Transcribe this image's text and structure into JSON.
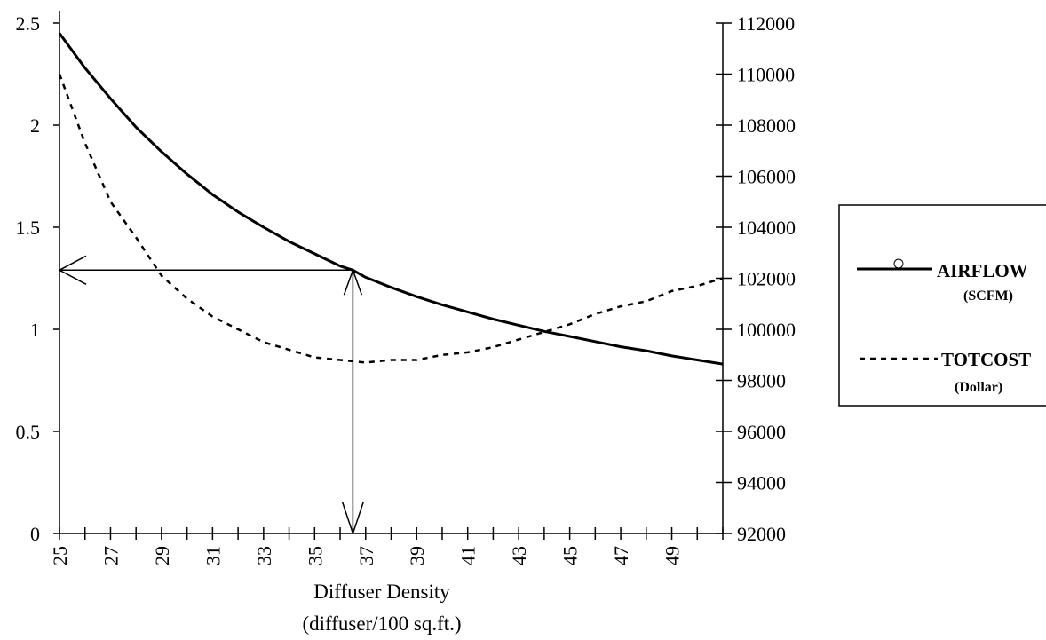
{
  "chart_data": {
    "type": "line",
    "xlabel": "Diffuser Density",
    "xlabel_line2": "(diffuser/100 sq.ft.)",
    "x_tick_labels": [
      "25",
      "27",
      "29",
      "31",
      "33",
      "35",
      "37",
      "39",
      "41",
      "43",
      "45",
      "47",
      "49"
    ],
    "xlim": [
      25,
      51
    ],
    "y_left": {
      "ticks": [
        "0",
        "0.5",
        "1",
        "1.5",
        "2",
        "2.5"
      ],
      "ylim": [
        0,
        2.5
      ]
    },
    "y_right": {
      "ticks": [
        "92000",
        "94000",
        "96000",
        "98000",
        "100000",
        "102000",
        "104000",
        "106000",
        "108000",
        "110000",
        "112000"
      ],
      "ylim": [
        92000,
        112000
      ]
    },
    "grid": false,
    "legend_placement": "right",
    "series": [
      {
        "name": "AIRFLOW",
        "unit": "(SCFM)",
        "axis": "left",
        "style": "solid",
        "x": [
          25,
          26,
          27,
          28,
          29,
          30,
          31,
          32,
          33,
          34,
          35,
          36,
          36.5,
          37,
          38,
          39,
          40,
          41,
          42,
          43,
          44,
          45,
          46,
          47,
          48,
          49,
          50,
          51
        ],
        "y": [
          2.45,
          2.28,
          2.13,
          1.99,
          1.87,
          1.76,
          1.66,
          1.575,
          1.5,
          1.43,
          1.37,
          1.31,
          1.29,
          1.255,
          1.205,
          1.16,
          1.12,
          1.085,
          1.05,
          1.02,
          0.99,
          0.965,
          0.94,
          0.915,
          0.895,
          0.87,
          0.85,
          0.83
        ]
      },
      {
        "name": "TOTCOST",
        "unit": "(Dollar)",
        "axis": "right",
        "style": "dashed",
        "x": [
          25,
          26,
          27,
          28,
          29,
          30,
          31,
          32,
          33,
          34,
          35,
          36,
          37,
          38,
          39,
          40,
          41,
          42,
          43,
          44,
          45,
          46,
          47,
          48,
          49,
          50,
          51
        ],
        "y": [
          110000,
          107300,
          105000,
          103600,
          102100,
          101200,
          100500,
          100000,
          99500,
          99200,
          98900,
          98800,
          98700,
          98800,
          98800,
          99000,
          99100,
          99300,
          99600,
          99900,
          100200,
          100600,
          100900,
          101100,
          101500,
          101700,
          102000
        ]
      }
    ],
    "annotations": {
      "marker_x": 36.5,
      "marker_y_left": 1.29
    }
  }
}
